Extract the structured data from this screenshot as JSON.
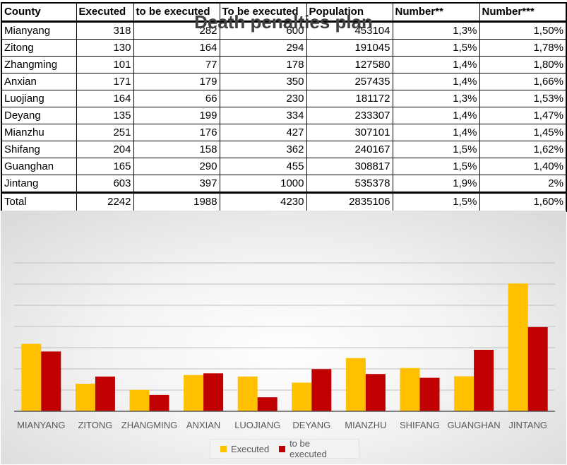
{
  "table": {
    "headers": [
      "County",
      "Executed",
      "to be executed",
      "To be executed",
      "Population",
      "Number**",
      "Number***"
    ],
    "rows": [
      [
        "Mianyang",
        "318",
        "282",
        "600",
        "453104",
        "1,3%",
        "1,50%"
      ],
      [
        "Zitong",
        "130",
        "164",
        "294",
        "191045",
        "1,5%",
        "1,78%"
      ],
      [
        "Zhangming",
        "101",
        "77",
        "178",
        "127580",
        "1,4%",
        "1,80%"
      ],
      [
        "Anxian",
        "171",
        "179",
        "350",
        "257435",
        "1,4%",
        "1,66%"
      ],
      [
        "Luojiang",
        "164",
        "66",
        "230",
        "181172",
        "1,3%",
        "1,53%"
      ],
      [
        "Deyang",
        "135",
        "199",
        "334",
        "233307",
        "1,4%",
        "1,47%"
      ],
      [
        "Mianzhu",
        "251",
        "176",
        "427",
        "307101",
        "1,4%",
        "1,45%"
      ],
      [
        "Shifang",
        "204",
        "158",
        "362",
        "240167",
        "1,5%",
        "1,62%"
      ],
      [
        "Guanghan",
        "165",
        "290",
        "455",
        "308817",
        "1,5%",
        "1,40%"
      ],
      [
        "Jintang",
        "603",
        "397",
        "1000",
        "535378",
        "1,9%",
        "2%"
      ]
    ],
    "total": [
      "Total",
      "2242",
      "1988",
      "4230",
      "2835106",
      "1,5%",
      "1,60%"
    ]
  },
  "chart_data": {
    "type": "bar",
    "title": "Death penalties plan",
    "categories": [
      "MIANYANG",
      "ZITONG",
      "ZHANGMING",
      "ANXIAN",
      "LUOJIANG",
      "DEYANG",
      "MIANZHU",
      "SHIFANG",
      "GUANGHAN",
      "JINTANG"
    ],
    "series": [
      {
        "name": "Executed",
        "color": "#ffc000",
        "values": [
          318,
          130,
          101,
          171,
          164,
          135,
          251,
          204,
          165,
          603
        ]
      },
      {
        "name": "to be executed",
        "color": "#c00000",
        "values": [
          282,
          164,
          77,
          179,
          66,
          199,
          176,
          158,
          290,
          397
        ]
      }
    ],
    "ylim": [
      0,
      700
    ],
    "gridlines": true,
    "y_tick_labels_shown": false,
    "legend_position": "bottom",
    "axis_color": "#595959",
    "grid_color": "#bfbfbf"
  }
}
